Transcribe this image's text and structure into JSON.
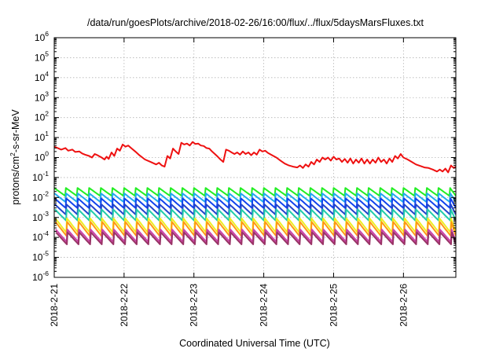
{
  "chart_data": {
    "type": "line",
    "title": "/data/run/goesPlots/archive/2018-02-26/16:00/flux/../flux/5daysMarsFluxes.txt",
    "xlabel": "Coordinated Universal Time (UTC)",
    "ylabel_main": "protons/cm",
    "ylabel_sup": "2",
    "ylabel_rest": "-s-sr-MeV",
    "yscale": "log",
    "ylim": [
      1e-06,
      1000000.0
    ],
    "xlim": [
      0,
      5.75
    ],
    "grid": true,
    "y_ticks": [
      {
        "exp": -6,
        "base": "10",
        "sup": "-6"
      },
      {
        "exp": -5,
        "base": "10",
        "sup": "-5"
      },
      {
        "exp": -4,
        "base": "10",
        "sup": "-4"
      },
      {
        "exp": -3,
        "base": "10",
        "sup": "-3"
      },
      {
        "exp": -2,
        "base": "10",
        "sup": "-2"
      },
      {
        "exp": -1,
        "base": "10",
        "sup": "-1"
      },
      {
        "exp": 0,
        "base": "10",
        "sup": "0"
      },
      {
        "exp": 1,
        "base": "10",
        "sup": "1"
      },
      {
        "exp": 2,
        "base": "10",
        "sup": "2"
      },
      {
        "exp": 3,
        "base": "10",
        "sup": "3"
      },
      {
        "exp": 4,
        "base": "10",
        "sup": "4"
      },
      {
        "exp": 5,
        "base": "10",
        "sup": "5"
      },
      {
        "exp": 6,
        "base": "10",
        "sup": "6"
      }
    ],
    "x_ticks": [
      {
        "day": 0,
        "label": "2018-2-21"
      },
      {
        "day": 1,
        "label": "2018-2-22"
      },
      {
        "day": 2,
        "label": "2018-2-23"
      },
      {
        "day": 3,
        "label": "2018-2-24"
      },
      {
        "day": 4,
        "label": "2018-2-25"
      },
      {
        "day": 5,
        "label": "2018-2-26"
      }
    ],
    "series": [
      {
        "color": "#ee1111",
        "kind": "red",
        "points": [
          [
            0.0,
            3.5
          ],
          [
            0.05,
            3.0
          ],
          [
            0.1,
            2.5
          ],
          [
            0.16,
            3.0
          ],
          [
            0.2,
            2.2
          ],
          [
            0.26,
            2.5
          ],
          [
            0.3,
            1.9
          ],
          [
            0.36,
            2.0
          ],
          [
            0.4,
            1.6
          ],
          [
            0.44,
            1.4
          ],
          [
            0.5,
            1.2
          ],
          [
            0.54,
            1.0
          ],
          [
            0.58,
            1.5
          ],
          [
            0.62,
            1.3
          ],
          [
            0.68,
            1.0
          ],
          [
            0.72,
            0.8
          ],
          [
            0.75,
            1.1
          ],
          [
            0.78,
            0.85
          ],
          [
            0.82,
            1.8
          ],
          [
            0.86,
            1.2
          ],
          [
            0.9,
            2.8
          ],
          [
            0.94,
            2.2
          ],
          [
            0.98,
            4.5
          ],
          [
            1.02,
            3.5
          ],
          [
            1.06,
            4.0
          ],
          [
            1.1,
            3.0
          ],
          [
            1.16,
            2.0
          ],
          [
            1.22,
            1.3
          ],
          [
            1.3,
            0.8
          ],
          [
            1.38,
            0.6
          ],
          [
            1.46,
            0.45
          ],
          [
            1.5,
            0.55
          ],
          [
            1.54,
            0.4
          ],
          [
            1.58,
            0.35
          ],
          [
            1.62,
            1.2
          ],
          [
            1.66,
            0.9
          ],
          [
            1.7,
            2.8
          ],
          [
            1.74,
            2.0
          ],
          [
            1.78,
            1.5
          ],
          [
            1.82,
            5.5
          ],
          [
            1.86,
            4.5
          ],
          [
            1.9,
            5.0
          ],
          [
            1.94,
            4.0
          ],
          [
            1.98,
            6.0
          ],
          [
            2.02,
            4.8
          ],
          [
            2.06,
            5.0
          ],
          [
            2.1,
            4.0
          ],
          [
            2.14,
            3.8
          ],
          [
            2.18,
            3.0
          ],
          [
            2.22,
            2.8
          ],
          [
            2.26,
            2.0
          ],
          [
            2.3,
            1.5
          ],
          [
            2.34,
            1.1
          ],
          [
            2.38,
            0.8
          ],
          [
            2.42,
            0.6
          ],
          [
            2.46,
            2.5
          ],
          [
            2.5,
            2.2
          ],
          [
            2.54,
            1.8
          ],
          [
            2.58,
            1.5
          ],
          [
            2.62,
            1.8
          ],
          [
            2.66,
            1.4
          ],
          [
            2.7,
            2.0
          ],
          [
            2.74,
            1.5
          ],
          [
            2.78,
            1.8
          ],
          [
            2.82,
            1.3
          ],
          [
            2.86,
            1.8
          ],
          [
            2.9,
            1.4
          ],
          [
            2.94,
            2.5
          ],
          [
            2.98,
            2.0
          ],
          [
            3.02,
            2.2
          ],
          [
            3.06,
            1.7
          ],
          [
            3.12,
            1.3
          ],
          [
            3.18,
            1.0
          ],
          [
            3.24,
            0.7
          ],
          [
            3.3,
            0.5
          ],
          [
            3.36,
            0.4
          ],
          [
            3.42,
            0.35
          ],
          [
            3.48,
            0.32
          ],
          [
            3.52,
            0.4
          ],
          [
            3.56,
            0.3
          ],
          [
            3.6,
            0.45
          ],
          [
            3.64,
            0.35
          ],
          [
            3.68,
            0.6
          ],
          [
            3.72,
            0.45
          ],
          [
            3.76,
            0.8
          ],
          [
            3.8,
            0.6
          ],
          [
            3.84,
            1.0
          ],
          [
            3.88,
            0.8
          ],
          [
            3.92,
            1.0
          ],
          [
            3.96,
            0.7
          ],
          [
            4.0,
            1.1
          ],
          [
            4.04,
            0.8
          ],
          [
            4.08,
            0.9
          ],
          [
            4.12,
            0.6
          ],
          [
            4.16,
            0.85
          ],
          [
            4.2,
            0.55
          ],
          [
            4.24,
            0.9
          ],
          [
            4.28,
            0.5
          ],
          [
            4.32,
            0.8
          ],
          [
            4.36,
            0.55
          ],
          [
            4.4,
            0.9
          ],
          [
            4.44,
            0.5
          ],
          [
            4.48,
            0.8
          ],
          [
            4.52,
            0.5
          ],
          [
            4.56,
            0.8
          ],
          [
            4.6,
            0.55
          ],
          [
            4.64,
            1.0
          ],
          [
            4.68,
            0.6
          ],
          [
            4.72,
            0.8
          ],
          [
            4.76,
            0.5
          ],
          [
            4.8,
            0.9
          ],
          [
            4.84,
            0.6
          ],
          [
            4.88,
            1.2
          ],
          [
            4.92,
            0.9
          ],
          [
            4.96,
            1.5
          ],
          [
            5.0,
            1.0
          ],
          [
            5.06,
            0.8
          ],
          [
            5.12,
            0.6
          ],
          [
            5.18,
            0.45
          ],
          [
            5.24,
            0.38
          ],
          [
            5.3,
            0.32
          ],
          [
            5.36,
            0.3
          ],
          [
            5.42,
            0.25
          ],
          [
            5.48,
            0.2
          ],
          [
            5.52,
            0.25
          ],
          [
            5.56,
            0.2
          ],
          [
            5.6,
            0.28
          ],
          [
            5.64,
            0.18
          ],
          [
            5.68,
            0.4
          ],
          [
            5.72,
            0.3
          ],
          [
            5.75,
            0.35
          ]
        ]
      },
      {
        "color": "#22ee22",
        "kind": "saw",
        "high": 0.03,
        "low": 0.012,
        "drop": 0.01,
        "offset": 0.0
      },
      {
        "color": "#22aaee",
        "kind": "saw",
        "high": 0.016,
        "low": 0.006,
        "drop": 0.01,
        "offset": 0.003
      },
      {
        "color": "#1144ee",
        "kind": "saw",
        "high": 0.009,
        "low": 0.003,
        "drop": 0.01,
        "offset": 0.006
      },
      {
        "color": "#2244cc",
        "kind": "saw",
        "high": 0.0045,
        "low": 0.0014,
        "drop": 0.01,
        "offset": 0.009
      },
      {
        "color": "#22ccaa",
        "kind": "saw",
        "high": 0.0025,
        "low": 0.0007,
        "drop": 0.01,
        "offset": 0.012
      },
      {
        "color": "#eeee22",
        "kind": "saw",
        "high": 0.0009,
        "low": 0.00018,
        "drop": 0.01,
        "offset": 0.015
      },
      {
        "color": "#ff9911",
        "kind": "saw",
        "high": 0.0006,
        "low": 0.00012,
        "drop": 0.01,
        "offset": 0.018
      },
      {
        "color": "#cc44aa",
        "kind": "saw",
        "high": 0.00025,
        "low": 6e-05,
        "drop": 0.01,
        "offset": 0.021
      },
      {
        "color": "#993366",
        "kind": "saw",
        "high": 0.00018,
        "low": 4.5e-05,
        "drop": 0.01,
        "offset": 0.024
      }
    ],
    "saw_period": 0.1667
  }
}
